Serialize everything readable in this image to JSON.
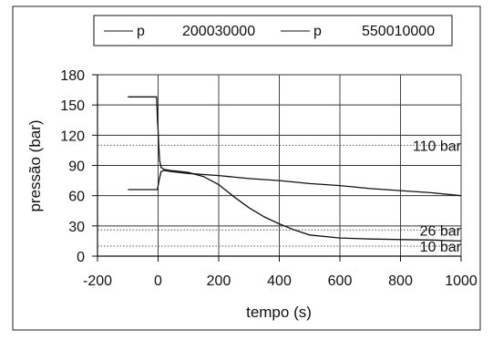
{
  "chart_data": {
    "type": "line",
    "xlabel": "tempo (s)",
    "ylabel": "pressão (bar)",
    "xlim": [
      -200,
      1000
    ],
    "ylim": [
      0,
      180
    ],
    "xticks": [
      -200,
      0,
      200,
      400,
      600,
      800,
      1000
    ],
    "yticks": [
      0,
      30,
      60,
      90,
      120,
      150,
      180
    ],
    "xtick_labels": [
      "-200",
      "0",
      "200",
      "400",
      "600",
      "800",
      "1000"
    ],
    "ytick_labels": [
      "0",
      "30",
      "60",
      "90",
      "120",
      "150",
      "180"
    ],
    "grid": "horizontal",
    "legend": {
      "position": "top",
      "entries": [
        {
          "symbol": "p",
          "code": "200030000"
        },
        {
          "symbol": "p",
          "code": "550010000"
        }
      ]
    },
    "series": [
      {
        "x": [
          -100,
          -5,
          -4,
          -2,
          0,
          2,
          5,
          10,
          20,
          40,
          60,
          100,
          150,
          200,
          250,
          300,
          350,
          400,
          450,
          500,
          600,
          700,
          800,
          900,
          1000
        ],
        "y": [
          158,
          158,
          150,
          135,
          125,
          110,
          95,
          88,
          86,
          85,
          84.5,
          83,
          79,
          71,
          59,
          48,
          39,
          32,
          26,
          21,
          18,
          17,
          16.5,
          16,
          15
        ]
      },
      {
        "x": [
          -100,
          -2,
          0,
          5,
          10,
          20,
          40,
          100,
          200,
          300,
          400,
          500,
          600,
          700,
          800,
          900,
          1000
        ],
        "y": [
          66,
          66,
          70,
          78,
          84,
          85,
          84,
          82,
          80,
          77,
          75,
          72,
          70,
          67,
          65,
          63,
          60
        ]
      }
    ],
    "reference_lines": [
      {
        "y": 110,
        "label": "110 bar"
      },
      {
        "y": 26,
        "label": "26 bar"
      },
      {
        "y": 10,
        "label": "10 bar"
      }
    ]
  }
}
